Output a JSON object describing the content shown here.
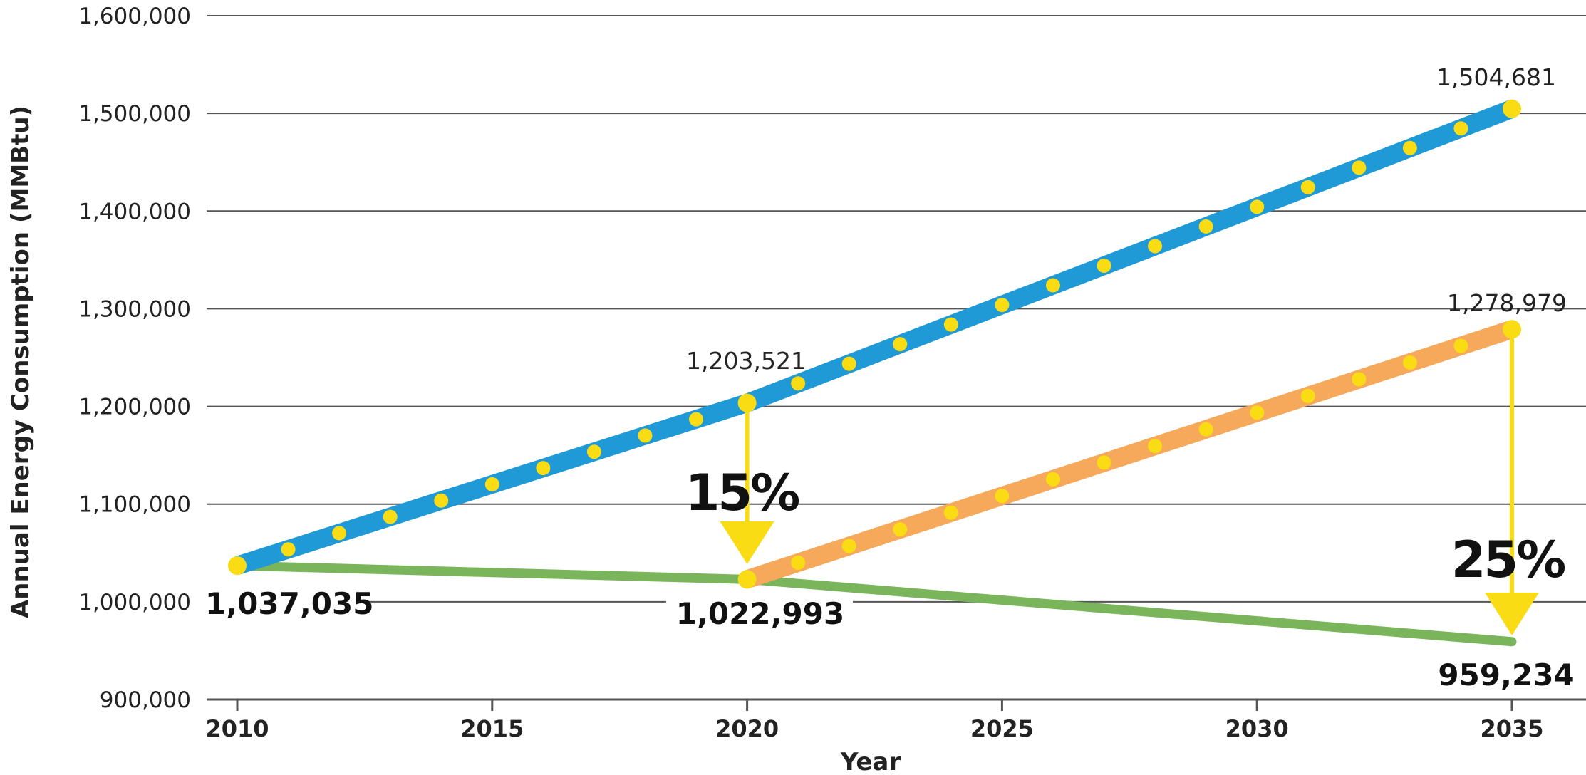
{
  "chart_data": {
    "type": "line",
    "xlabel": "Year",
    "ylabel": "Annual Energy Consumption (MMBtu)",
    "xlim": [
      2010,
      2035
    ],
    "ylim": [
      900000,
      1600000
    ],
    "x_ticks": [
      "2010",
      "2015",
      "2020",
      "2025",
      "2030",
      "2035"
    ],
    "y_ticks": [
      "900,000",
      "1,000,000",
      "1,100,000",
      "1,200,000",
      "1,300,000",
      "1,400,000",
      "1,500,000",
      "1,600,000"
    ],
    "grid": "horizontal",
    "colors": {
      "blue": "#1f9ad6",
      "orange": "#f6a95a",
      "green": "#7ab55c",
      "yellow": "#f9dc14",
      "grid": "#555555"
    },
    "series": [
      {
        "key": "blue",
        "x": [
          2010,
          2020,
          2035
        ],
        "y": [
          1037035,
          1203521,
          1504681
        ]
      },
      {
        "key": "orange",
        "x": [
          2020,
          2035
        ],
        "y": [
          1022993,
          1278979
        ]
      },
      {
        "key": "green",
        "x": [
          2010,
          2020,
          2035
        ],
        "y": [
          1037035,
          1022993,
          959234
        ]
      }
    ],
    "annotations": {
      "start_value": "1,037,035",
      "blue_2020": "1,203,521",
      "blue_2035": "1,504,681",
      "orange_2035": "1,278,979",
      "green_2020": "1,022,993",
      "green_2035": "959,234",
      "pct_2020": "15%",
      "pct_2035": "25%"
    }
  }
}
